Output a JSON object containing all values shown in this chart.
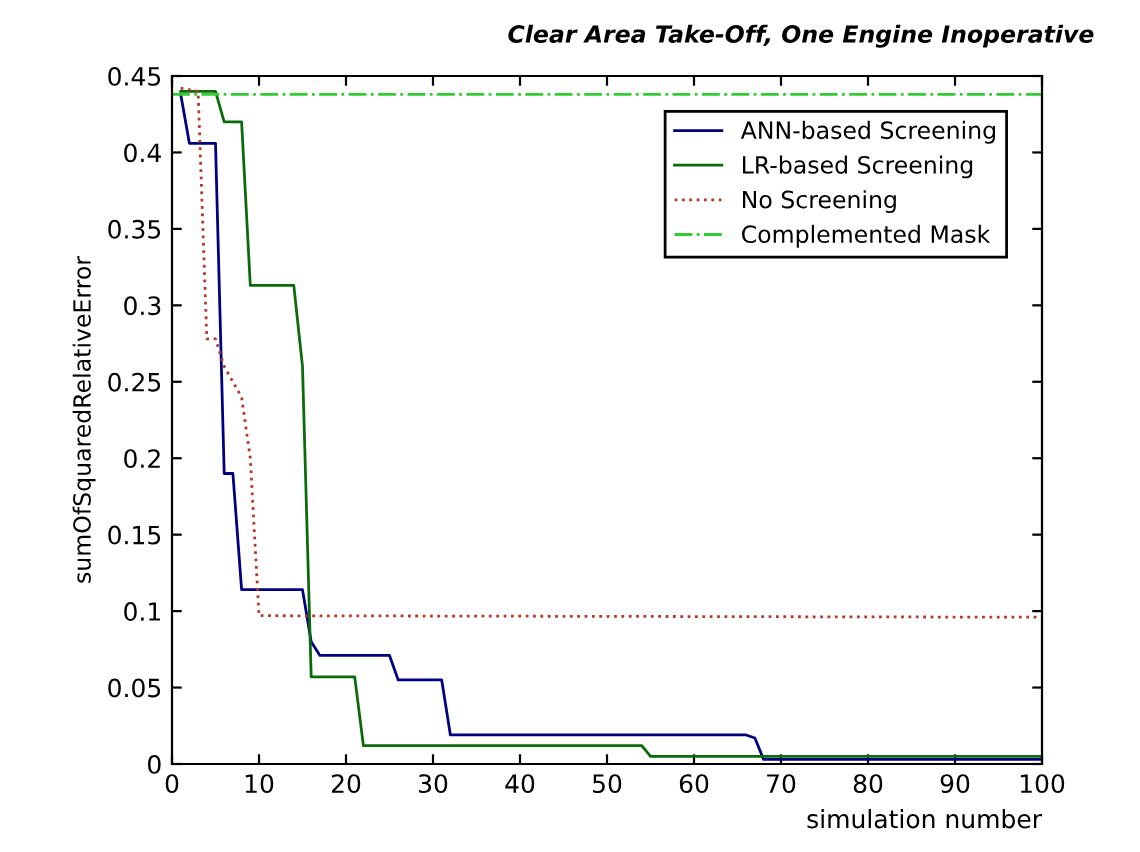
{
  "chart_data": {
    "type": "line",
    "title": "Clear Area Take-Off, One Engine Inoperative",
    "xlabel": "simulation number",
    "ylabel": "sumOfSquaredRelativeError",
    "xlim": [
      0,
      100
    ],
    "xticks": [
      0,
      10,
      20,
      30,
      40,
      50,
      60,
      70,
      80,
      90,
      100
    ],
    "ylim": [
      0,
      0.45
    ],
    "yticks": [
      0,
      0.05,
      0.1,
      0.15,
      0.2,
      0.25,
      0.3,
      0.35,
      0.4,
      0.45
    ],
    "grid": false,
    "legend": "top right",
    "marker": "none",
    "series": [
      {
        "name": "ANN-based Screening",
        "color": "#000080",
        "line_style": "solid",
        "x": [
          1,
          2,
          5,
          6,
          7,
          8,
          15,
          16,
          17,
          25,
          26,
          31,
          32,
          66,
          67,
          68,
          100
        ],
        "values": [
          0.438,
          0.406,
          0.406,
          0.19,
          0.19,
          0.114,
          0.114,
          0.08,
          0.071,
          0.071,
          0.055,
          0.055,
          0.019,
          0.019,
          0.017,
          0.003,
          0.003
        ]
      },
      {
        "name": "LR-based Screening",
        "color": "#0b6b0b",
        "line_style": "solid",
        "x": [
          1,
          5,
          6,
          8,
          9,
          14,
          15,
          16,
          21,
          22,
          54,
          55,
          100
        ],
        "values": [
          0.44,
          0.44,
          0.42,
          0.42,
          0.313,
          0.313,
          0.26,
          0.057,
          0.057,
          0.012,
          0.012,
          0.005,
          0.005
        ]
      },
      {
        "name": "No Screening",
        "color": "#b03a2e",
        "line_style": "dotted",
        "x": [
          1,
          3,
          4,
          5,
          6,
          7,
          8,
          9,
          10,
          100
        ],
        "values": [
          0.442,
          0.44,
          0.278,
          0.278,
          0.26,
          0.25,
          0.24,
          0.2,
          0.097,
          0.096
        ]
      },
      {
        "name": "Complemented Mask",
        "color": "#33cc33",
        "line_style": "dashdot",
        "x": [
          0,
          100
        ],
        "values": [
          0.438,
          0.438
        ]
      }
    ]
  }
}
